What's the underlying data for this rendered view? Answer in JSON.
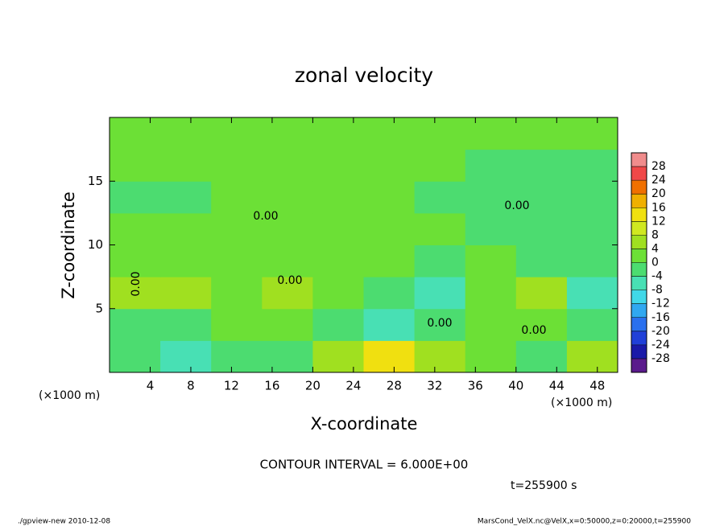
{
  "chart_data": {
    "type": "contour",
    "title": "zonal velocity",
    "xlabel": "X-coordinate",
    "ylabel": "Z-coordinate",
    "xunit": "(×1000 m)",
    "yunit": "(×1000 m)",
    "subtitle": "CONTOUR INTERVAL = 6.000E+00",
    "time_label": "t=255900 s",
    "footer_left": "./gpview-new  2010-12-08",
    "footer_right": "MarsCond_VelX.nc@VelX,x=0:50000,z=0:20000,t=255900",
    "xlim": [
      0,
      50
    ],
    "ylim": [
      0,
      20
    ],
    "xticks": [
      4,
      8,
      12,
      16,
      20,
      24,
      28,
      32,
      36,
      40,
      44,
      48
    ],
    "yticks": [
      5,
      10,
      15
    ],
    "values": [
      [
        -3,
        -5,
        -2,
        -2,
        5,
        12,
        6,
        2,
        -4,
        6
      ],
      [
        -2,
        -2,
        1,
        1,
        -3,
        -6,
        -2,
        2,
        3,
        -2
      ],
      [
        4,
        7,
        3,
        4,
        2,
        -3,
        -8,
        2,
        7,
        -6
      ],
      [
        3,
        3,
        2,
        2,
        1,
        1,
        -2,
        1,
        -2,
        -3
      ],
      [
        2,
        2,
        2,
        2,
        2,
        2,
        1,
        -1,
        -1,
        -1
      ],
      [
        -1,
        -1,
        1,
        1,
        1,
        1,
        -1,
        -1,
        -1,
        -1
      ],
      [
        1,
        1,
        1,
        1,
        1,
        1,
        1,
        -1,
        -1,
        -1
      ],
      [
        2,
        2,
        2,
        2,
        2,
        2,
        2,
        2,
        2,
        2
      ]
    ],
    "levels": [
      -28,
      -24,
      -20,
      -16,
      -12,
      -8,
      -4,
      0,
      4,
      8,
      12,
      16,
      20,
      24,
      28
    ],
    "colors": [
      "#5a1a8c",
      "#1a1aa8",
      "#2040d8",
      "#2a70ee",
      "#30a8f0",
      "#40d8e8",
      "#48e0b4",
      "#4cdc70",
      "#6ce036",
      "#a0e020",
      "#d0e820",
      "#f0e010",
      "#f0b000",
      "#f07000",
      "#f04848",
      "#f08c8c"
    ],
    "contour_labels": [
      {
        "value": 0,
        "label": "0.00"
      },
      {
        "value": 0,
        "label": "0.00"
      },
      {
        "value": 0,
        "label": "0.00"
      },
      {
        "value": 0,
        "label": "0.00"
      },
      {
        "value": 0,
        "label": "0.00"
      },
      {
        "value": 0,
        "label": "0.00"
      }
    ]
  }
}
